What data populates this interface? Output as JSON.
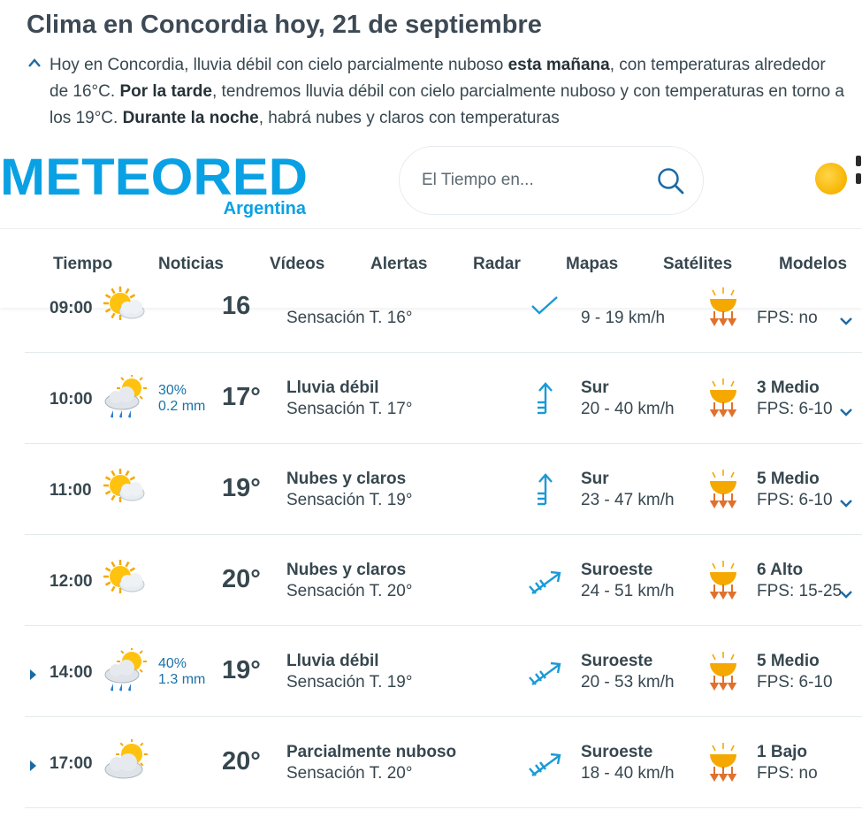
{
  "intro": {
    "title": "Clima en Concordia hoy, 21 de septiembre",
    "p1": "Hoy en Concordia, lluvia débil con cielo parcialmente nuboso ",
    "b1": "esta mañana",
    "p2": ", con temperaturas alrededor de 16°C. ",
    "b2": "Por la tarde",
    "p3": ", tendremos lluvia débil con cielo parcialmente nuboso y con temperaturas en torno a los 19°C. ",
    "b3": "Durante la noche",
    "p4": ", habrá nubes y claros con temperaturas"
  },
  "header": {
    "logo_text": "METEORED",
    "logo_sub": "Argentina",
    "search_placeholder": "El Tiempo en..."
  },
  "nav": [
    {
      "label": "Tiempo"
    },
    {
      "label": "Noticias"
    },
    {
      "label": "Vídeos"
    },
    {
      "label": "Alertas"
    },
    {
      "label": "Radar"
    },
    {
      "label": "Mapas"
    },
    {
      "label": "Satélites"
    },
    {
      "label": "Modelos"
    }
  ],
  "rows": [
    {
      "time": "09:00",
      "icon": "partly-sunny-icon",
      "prob": "",
      "mm": "",
      "temp": "16",
      "cond": "",
      "feel": "Sensación T. 16°",
      "wind_dir": "",
      "wind_speed": "9 - 19 km/h",
      "wind_icon": "wind-arrow-icon",
      "uv": "",
      "fps": "FPS: no",
      "expandable": false
    },
    {
      "time": "10:00",
      "icon": "rain-sun-icon",
      "prob": "30%",
      "mm": "0.2 mm",
      "temp": "17°",
      "cond": "Lluvia débil",
      "feel": "Sensación T. 17°",
      "wind_dir": "Sur",
      "wind_speed": "20 - 40 km/h",
      "wind_icon": "wind-south-icon",
      "uv": "3 Medio",
      "fps": "FPS: 6-10",
      "expandable": false
    },
    {
      "time": "11:00",
      "icon": "partly-sunny-icon",
      "prob": "",
      "mm": "",
      "temp": "19°",
      "cond": "Nubes y claros",
      "feel": "Sensación T. 19°",
      "wind_dir": "Sur",
      "wind_speed": "23 - 47 km/h",
      "wind_icon": "wind-south-icon",
      "uv": "5 Medio",
      "fps": "FPS: 6-10",
      "expandable": false
    },
    {
      "time": "12:00",
      "icon": "partly-sunny-icon",
      "prob": "",
      "mm": "",
      "temp": "20°",
      "cond": "Nubes y claros",
      "feel": "Sensación T. 20°",
      "wind_dir": "Suroeste",
      "wind_speed": "24 - 51 km/h",
      "wind_icon": "wind-southwest-icon",
      "uv": "6 Alto",
      "fps": "FPS: 15-25",
      "expandable": false
    },
    {
      "time": "14:00",
      "icon": "rain-sun-icon",
      "prob": "40%",
      "mm": "1.3 mm",
      "temp": "19°",
      "cond": "Lluvia débil",
      "feel": "Sensación T. 19°",
      "wind_dir": "Suroeste",
      "wind_speed": "20 - 53 km/h",
      "wind_icon": "wind-southwest-icon",
      "uv": "5 Medio",
      "fps": "FPS: 6-10",
      "expandable": true
    },
    {
      "time": "17:00",
      "icon": "cloudy-sun-icon",
      "prob": "",
      "mm": "",
      "temp": "20°",
      "cond": "Parcialmente nuboso",
      "feel": "Sensación T. 20°",
      "wind_dir": "Suroeste",
      "wind_speed": "18 - 40 km/h",
      "wind_icon": "wind-southwest-icon",
      "uv": "1 Bajo",
      "fps": "FPS: no",
      "expandable": true
    }
  ],
  "colors": {
    "brand_blue": "#0aa1e4",
    "text": "#37474f",
    "accent_blue": "#1a73a8",
    "sun": "#f7b500"
  }
}
